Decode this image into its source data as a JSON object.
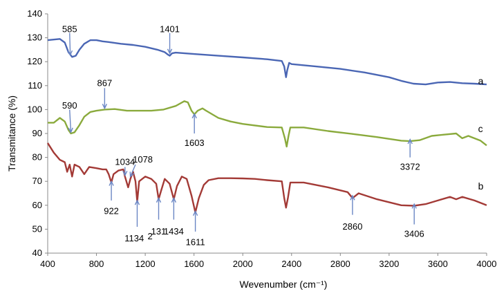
{
  "chart_data": {
    "type": "line",
    "xlabel": "Wevenumber (cm⁻¹)",
    "ylabel": "Transmitance (%)",
    "xlim": [
      400,
      4000
    ],
    "ylim": [
      40,
      140
    ],
    "x_ticks": [
      400,
      800,
      1200,
      1600,
      2000,
      2400,
      2800,
      3200,
      3600,
      4000
    ],
    "y_ticks": [
      40,
      50,
      60,
      70,
      80,
      90,
      100,
      110,
      120,
      130,
      140
    ],
    "grid": false,
    "series": [
      {
        "name": "a",
        "color": "#4a66b4",
        "label_at": [
          3930,
          112
        ],
        "points": [
          [
            400,
            129
          ],
          [
            500,
            129.5
          ],
          [
            540,
            128
          ],
          [
            570,
            124
          ],
          [
            600,
            122
          ],
          [
            630,
            122.5
          ],
          [
            660,
            125
          ],
          [
            700,
            127.5
          ],
          [
            750,
            129
          ],
          [
            800,
            129
          ],
          [
            850,
            128.5
          ],
          [
            900,
            128.2
          ],
          [
            1000,
            127.5
          ],
          [
            1100,
            127
          ],
          [
            1200,
            126.2
          ],
          [
            1300,
            125
          ],
          [
            1360,
            124
          ],
          [
            1385,
            123
          ],
          [
            1401,
            122.5
          ],
          [
            1420,
            123.5
          ],
          [
            1450,
            123.8
          ],
          [
            1600,
            123.2
          ],
          [
            1800,
            122.5
          ],
          [
            2000,
            121.8
          ],
          [
            2200,
            121
          ],
          [
            2320,
            120.3
          ],
          [
            2340,
            118
          ],
          [
            2355,
            113.5
          ],
          [
            2365,
            116.5
          ],
          [
            2380,
            119.5
          ],
          [
            2400,
            119
          ],
          [
            2600,
            118
          ],
          [
            2800,
            117
          ],
          [
            3000,
            115.5
          ],
          [
            3200,
            113.5
          ],
          [
            3300,
            112
          ],
          [
            3400,
            110.8
          ],
          [
            3500,
            110.5
          ],
          [
            3600,
            111.3
          ],
          [
            3700,
            111.5
          ],
          [
            3800,
            111
          ],
          [
            3900,
            110.8
          ],
          [
            4000,
            110.5
          ]
        ]
      },
      {
        "name": "c",
        "color": "#8aaa3c",
        "label_at": [
          3930,
          92
        ],
        "points": [
          [
            400,
            94.5
          ],
          [
            450,
            94.5
          ],
          [
            500,
            96.5
          ],
          [
            540,
            95
          ],
          [
            570,
            91.5
          ],
          [
            590,
            90
          ],
          [
            620,
            90.5
          ],
          [
            660,
            93.5
          ],
          [
            700,
            97
          ],
          [
            750,
            99
          ],
          [
            800,
            99.5
          ],
          [
            867,
            100
          ],
          [
            950,
            100.2
          ],
          [
            1050,
            99.5
          ],
          [
            1150,
            99.5
          ],
          [
            1250,
            99.5
          ],
          [
            1350,
            100
          ],
          [
            1450,
            101.5
          ],
          [
            1520,
            103.5
          ],
          [
            1550,
            103
          ],
          [
            1580,
            99.5
          ],
          [
            1603,
            98
          ],
          [
            1630,
            99.5
          ],
          [
            1670,
            100.5
          ],
          [
            1700,
            99.5
          ],
          [
            1800,
            96.5
          ],
          [
            1900,
            95
          ],
          [
            2000,
            94
          ],
          [
            2200,
            92.7
          ],
          [
            2320,
            92.5
          ],
          [
            2345,
            88
          ],
          [
            2360,
            84.5
          ],
          [
            2375,
            89
          ],
          [
            2390,
            92.5
          ],
          [
            2500,
            92.5
          ],
          [
            2700,
            91
          ],
          [
            2900,
            89.8
          ],
          [
            3100,
            88.5
          ],
          [
            3300,
            87
          ],
          [
            3372,
            86.8
          ],
          [
            3450,
            87.2
          ],
          [
            3550,
            89
          ],
          [
            3650,
            89.5
          ],
          [
            3750,
            90
          ],
          [
            3800,
            88
          ],
          [
            3850,
            89
          ],
          [
            3950,
            87
          ],
          [
            4000,
            85
          ]
        ]
      },
      {
        "name": "b",
        "color": "#a33a36",
        "label_at": [
          3930,
          68
        ],
        "points": [
          [
            400,
            86
          ],
          [
            450,
            82
          ],
          [
            500,
            79
          ],
          [
            540,
            78
          ],
          [
            560,
            74
          ],
          [
            580,
            77
          ],
          [
            600,
            72
          ],
          [
            620,
            77
          ],
          [
            660,
            76
          ],
          [
            700,
            73
          ],
          [
            740,
            76
          ],
          [
            800,
            75.5
          ],
          [
            850,
            75
          ],
          [
            880,
            75
          ],
          [
            900,
            73
          ],
          [
            922,
            69.5
          ],
          [
            940,
            73
          ],
          [
            980,
            74.5
          ],
          [
            1020,
            75
          ],
          [
            1034,
            72
          ],
          [
            1060,
            67.5
          ],
          [
            1078,
            71
          ],
          [
            1100,
            74
          ],
          [
            1120,
            70
          ],
          [
            1134,
            61.5
          ],
          [
            1150,
            70
          ],
          [
            1200,
            72
          ],
          [
            1250,
            71
          ],
          [
            1290,
            69
          ],
          [
            1310,
            62.5
          ],
          [
            1330,
            66
          ],
          [
            1360,
            71
          ],
          [
            1400,
            69
          ],
          [
            1434,
            62.5
          ],
          [
            1460,
            68
          ],
          [
            1500,
            72
          ],
          [
            1540,
            71
          ],
          [
            1580,
            64
          ],
          [
            1611,
            57
          ],
          [
            1640,
            63
          ],
          [
            1680,
            68.5
          ],
          [
            1720,
            70.5
          ],
          [
            1800,
            71.3
          ],
          [
            1900,
            71.3
          ],
          [
            2000,
            71.2
          ],
          [
            2100,
            71
          ],
          [
            2200,
            70.5
          ],
          [
            2320,
            70
          ],
          [
            2340,
            63
          ],
          [
            2355,
            59
          ],
          [
            2370,
            63
          ],
          [
            2390,
            69.5
          ],
          [
            2500,
            69.5
          ],
          [
            2700,
            67.5
          ],
          [
            2860,
            65.5
          ],
          [
            2900,
            63
          ],
          [
            2950,
            65
          ],
          [
            3100,
            62.5
          ],
          [
            3300,
            60
          ],
          [
            3406,
            59.8
          ],
          [
            3500,
            60.5
          ],
          [
            3600,
            62
          ],
          [
            3700,
            63.5
          ],
          [
            3750,
            62.5
          ],
          [
            3800,
            63.5
          ],
          [
            3900,
            62
          ],
          [
            4000,
            60
          ]
        ]
      }
    ],
    "annotations": [
      {
        "label": "585",
        "x": 585,
        "tip_y": 122.8,
        "text_at": [
          580,
          133.5
        ],
        "arrow": [
          580,
          132,
          585,
          122.8
        ]
      },
      {
        "label": "1401",
        "x": 1401,
        "tip_y": 123.5,
        "text_at": [
          1401,
          133.5
        ],
        "arrow": [
          1401,
          132,
          1401,
          123.5
        ]
      },
      {
        "label": "867",
        "x": 867,
        "tip_y": 100.5,
        "text_at": [
          867,
          111
        ],
        "arrow": [
          867,
          109,
          867,
          100.5
        ]
      },
      {
        "label": "590",
        "x": 590,
        "tip_y": 90.5,
        "text_at": [
          580,
          101.5
        ],
        "arrow": [
          580,
          100,
          590,
          90.5
        ]
      },
      {
        "label": "1603",
        "x": 1603,
        "tip_y": 98.2,
        "text_at": [
          1603,
          86
        ],
        "arrow": [
          1603,
          90,
          1603,
          98.2
        ]
      },
      {
        "label": "3372",
        "x": 3372,
        "tip_y": 87.5,
        "text_at": [
          3372,
          76
        ],
        "arrow": [
          3372,
          80,
          3372,
          87.5
        ]
      },
      {
        "label": "1034",
        "x": 1034,
        "tip_y": 72.5,
        "text_at": [
          1034,
          78
        ],
        "arrow": [
          1034,
          76,
          1034,
          72.5
        ]
      },
      {
        "label": "1078",
        "x": 1078,
        "tip_y": 72,
        "text_at": [
          1180,
          79
        ],
        "arrow": [
          1120,
          77,
          1078,
          72
        ]
      },
      {
        "label": "922",
        "x": 922,
        "tip_y": 70,
        "text_at": [
          922,
          57.5
        ],
        "arrow": [
          922,
          62,
          922,
          70
        ]
      },
      {
        "label": "1134",
        "x": 1134,
        "tip_y": 62,
        "text_at": [
          1110,
          46
        ],
        "arrow": [
          1134,
          51,
          1134,
          62
        ]
      },
      {
        "label": "131",
        "x": 1310,
        "tip_y": 63,
        "text_at": [
          1310,
          49
        ],
        "arrow": [
          1310,
          54,
          1310,
          63
        ]
      },
      {
        "label": "2",
        "x": 1240,
        "tip_y": 47,
        "text_at": [
          1240,
          47
        ],
        "arrow": null
      },
      {
        "label": "1434",
        "x": 1434,
        "tip_y": 63,
        "text_at": [
          1434,
          49
        ],
        "arrow": [
          1434,
          54,
          1434,
          63
        ]
      },
      {
        "label": "1611",
        "x": 1611,
        "tip_y": 57.5,
        "text_at": [
          1611,
          44.5
        ],
        "arrow": [
          1611,
          49,
          1611,
          57.5
        ]
      },
      {
        "label": "2860",
        "x": 2900,
        "tip_y": 64,
        "text_at": [
          2900,
          51
        ],
        "arrow": [
          2900,
          56,
          2900,
          64
        ]
      },
      {
        "label": "3406",
        "x": 3406,
        "tip_y": 60.5,
        "text_at": [
          3406,
          48
        ],
        "arrow": [
          3406,
          52,
          3406,
          60.5
        ]
      }
    ]
  }
}
